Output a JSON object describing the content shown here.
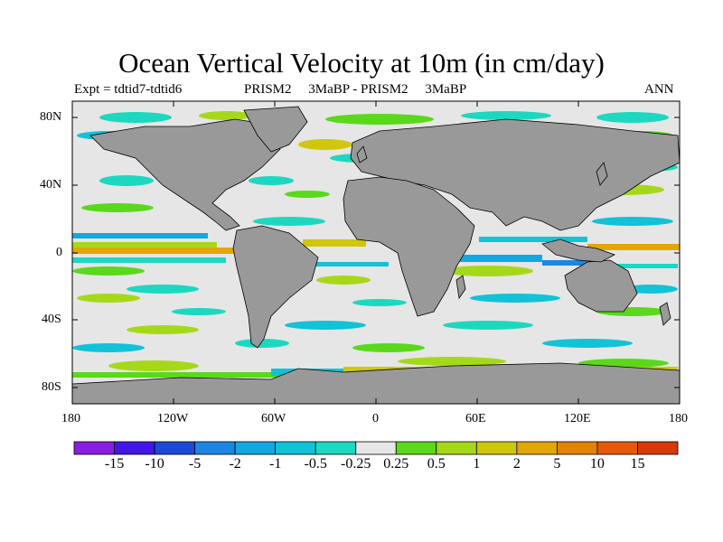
{
  "title": "Ocean Vertical Velocity at 10m (in cm/day)",
  "subtitle_left": "Expt = tdtid7-tdtid6",
  "subtitle_center": "PRISM2     3MaBP - PRISM2     3MaBP",
  "subtitle_right": "ANN",
  "y_ticks": [
    "80N",
    "40N",
    "0",
    "40S",
    "80S"
  ],
  "x_ticks": [
    "180",
    "120W",
    "60W",
    "0",
    "60E",
    "120E",
    "180"
  ],
  "colorbar": {
    "colors": [
      "#8a1ee0",
      "#4216e6",
      "#1c4ad6",
      "#1e86e2",
      "#12a8e0",
      "#12c2d6",
      "#1cd8c0",
      "#e6e6e6",
      "#5ad81c",
      "#a6d81a",
      "#cfc60e",
      "#e2a606",
      "#e28206",
      "#e25a0a",
      "#d63a0a"
    ],
    "labels": [
      "-15",
      "-10",
      "-5",
      "-2",
      "-1",
      "-0.5",
      "-0.25",
      "0.25",
      "0.5",
      "1",
      "2",
      "5",
      "10",
      "15"
    ]
  },
  "colors": {
    "land": "#999999",
    "ocean_neutral": "#e6e6e6"
  }
}
